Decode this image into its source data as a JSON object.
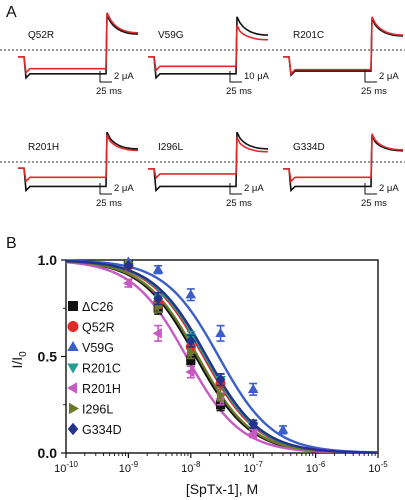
{
  "panels": {
    "a_letter": "A",
    "b_letter": "B"
  },
  "traces": {
    "cells": [
      {
        "label": "Q52R",
        "scale_value": "2 μA",
        "time_value": "25 ms",
        "pre": -0.2,
        "ctrl_step": -0.7,
        "tox_step": -0.55,
        "ctrl_post": 0.85,
        "tox_post": 0.92
      },
      {
        "label": "V59G",
        "scale_value": "10 μA",
        "time_value": "25 ms",
        "pre": -0.2,
        "ctrl_step": -0.7,
        "tox_step": -0.48,
        "ctrl_post": 0.8,
        "tox_post": 0.55
      },
      {
        "label": "R201C",
        "scale_value": "2 μA",
        "time_value": "25 ms",
        "pre": -0.2,
        "ctrl_step": -0.62,
        "tox_step": -0.58,
        "ctrl_post": 0.75,
        "tox_post": 0.8
      },
      {
        "label": "R201H",
        "scale_value": "2 μA",
        "time_value": "25 ms",
        "pre": -0.18,
        "ctrl_step": -0.72,
        "tox_step": -0.45,
        "ctrl_post": 0.7,
        "tox_post": 0.62
      },
      {
        "label": "I296L",
        "scale_value": "2 μA",
        "time_value": "25 ms",
        "pre": -0.2,
        "ctrl_step": -0.72,
        "tox_step": -0.35,
        "ctrl_post": 0.7,
        "tox_post": 0.55
      },
      {
        "label": "G334D",
        "scale_value": "2 μA",
        "time_value": "25 ms",
        "pre": -0.2,
        "ctrl_step": -0.72,
        "tox_step": -0.45,
        "ctrl_post": 0.6,
        "tox_post": 0.65
      }
    ]
  },
  "colors": {
    "control_trace": "#111111",
    "toxin_trace": "#e02a2a"
  },
  "chart_data": {
    "type": "scatter",
    "xlabel": "[SpTx-1], M",
    "ylabel_main": "I/I",
    "ylabel_sub": "0",
    "xscale": "log",
    "xlim_exp": [
      -10,
      -5
    ],
    "x_tick_labels": [
      {
        "base": "10",
        "exp": "-10"
      },
      {
        "base": "10",
        "exp": "-9"
      },
      {
        "base": "10",
        "exp": "-8"
      },
      {
        "base": "10",
        "exp": "-7"
      },
      {
        "base": "10",
        "exp": "-6"
      },
      {
        "base": "10",
        "exp": "-5"
      }
    ],
    "ylim": [
      0,
      1.0
    ],
    "y_tick_labels": [
      "0.0",
      "0.5",
      "1.0"
    ],
    "legend_position": "left",
    "series": [
      {
        "name": "ΔC26",
        "color": "#111111",
        "marker": "square",
        "ic50": 1.2e-08,
        "x": [
          1e-09,
          3e-09,
          1e-08,
          3e-08
        ],
        "y": [
          0.98,
          0.75,
          0.48,
          0.25
        ],
        "err": [
          0.01,
          0.03,
          0.03,
          0.03
        ]
      },
      {
        "name": "Q52R",
        "color": "#e02a2a",
        "marker": "circle",
        "ic50": 1.6e-08,
        "x": [
          1e-09,
          3e-09,
          1e-08,
          3e-08
        ],
        "y": [
          0.97,
          0.78,
          0.55,
          0.36
        ],
        "err": [
          0.01,
          0.03,
          0.03,
          0.03
        ]
      },
      {
        "name": "V59G",
        "color": "#3b5ec8",
        "marker": "triangle-up",
        "ic50": 2.8e-08,
        "x": [
          1e-09,
          3e-09,
          1e-08,
          3e-08,
          1e-07,
          3e-07
        ],
        "y": [
          0.99,
          0.95,
          0.82,
          0.62,
          0.33,
          0.12
        ],
        "err": [
          0.01,
          0.02,
          0.03,
          0.04,
          0.03,
          0.02
        ]
      },
      {
        "name": "R201C",
        "color": "#1f9e91",
        "marker": "triangle-down",
        "ic50": 1.7e-08,
        "x": [
          1e-09,
          3e-09,
          1e-08,
          3e-08,
          1e-07
        ],
        "y": [
          0.97,
          0.8,
          0.6,
          0.38,
          0.14
        ],
        "err": [
          0.01,
          0.03,
          0.03,
          0.03,
          0.02
        ]
      },
      {
        "name": "R201H",
        "color": "#c75ac2",
        "marker": "triangle-left",
        "ic50": 8.5e-09,
        "x": [
          1e-09,
          3e-09,
          1e-08,
          3e-08,
          1e-07
        ],
        "y": [
          0.88,
          0.62,
          0.42,
          0.28,
          0.1
        ],
        "err": [
          0.02,
          0.04,
          0.03,
          0.03,
          0.02
        ]
      },
      {
        "name": "I296L",
        "color": "#6b7a2a",
        "marker": "triangle-right",
        "ic50": 1.3e-08,
        "x": [
          1e-09,
          3e-09,
          1e-08,
          3e-08
        ],
        "y": [
          0.98,
          0.76,
          0.52,
          0.3
        ],
        "err": [
          0.01,
          0.03,
          0.03,
          0.03
        ]
      },
      {
        "name": "G334D",
        "color": "#23328a",
        "marker": "diamond",
        "ic50": 1.8e-08,
        "x": [
          1e-09,
          3e-09,
          1e-08,
          3e-08,
          1e-07
        ],
        "y": [
          0.97,
          0.8,
          0.58,
          0.38,
          0.15
        ],
        "err": [
          0.01,
          0.03,
          0.03,
          0.03,
          0.02
        ]
      }
    ]
  }
}
